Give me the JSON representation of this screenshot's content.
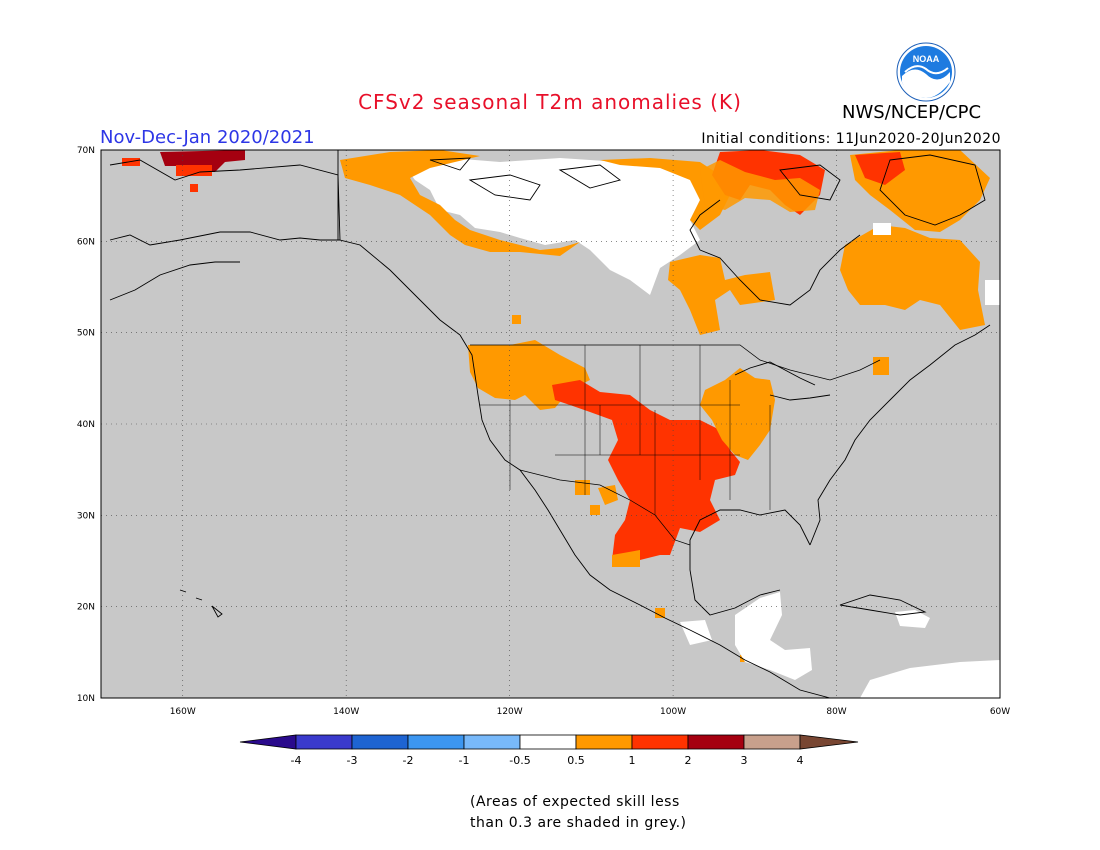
{
  "header": {
    "title": "CFSv2 seasonal T2m anomalies (K)",
    "period": "Nov-Dec-Jan 2020/2021",
    "initial_conditions": "Initial conditions: 11Jun2020-20Jun2020",
    "agency": "NWS/NCEP/CPC",
    "logo_text": "NOAA"
  },
  "map": {
    "projection": "lat-lon",
    "lon_range": [
      -170,
      -60
    ],
    "lat_range": [
      10,
      70
    ],
    "lat_ticks": [
      "10N",
      "20N",
      "30N",
      "40N",
      "50N",
      "60N",
      "70N"
    ],
    "lon_ticks": [
      "160W",
      "140W",
      "120W",
      "100W",
      "80W",
      "60W"
    ],
    "grid": "dotted",
    "land_color_no_skill": "#c8c8c8",
    "regions": [
      {
        "name": "northern-alaska-coast",
        "category": "2 to 3",
        "color": "#a50010"
      },
      {
        "name": "central-canada-arctic",
        "category": "-0.5 to 0.5",
        "color": "#ffffff"
      },
      {
        "name": "hudson-bay-and-quebec",
        "category": "0.5 to 1",
        "color": "#ff9900"
      },
      {
        "name": "baffin-region",
        "category": "1 to 2",
        "color": "#ff3300"
      },
      {
        "name": "pacific-northwest-and-rockies",
        "category": "0.5 to 1",
        "color": "#ff9900"
      },
      {
        "name": "central-and-southern-plains",
        "category": "1 to 2",
        "color": "#ff3300"
      },
      {
        "name": "upper-midwest",
        "category": "0.5 to 1",
        "color": "#ff9900"
      },
      {
        "name": "central-america",
        "category": "-0.5 to 0.5",
        "color": "#ffffff"
      }
    ]
  },
  "colorbar": {
    "labels": [
      "-4",
      "-3",
      "-2",
      "-1",
      "-0.5",
      "0.5",
      "1",
      "2",
      "3",
      "4"
    ],
    "colors": [
      "#2a0a8c",
      "#3a3acc",
      "#1e64d2",
      "#3c96f0",
      "#78b9fa",
      "#ffffff",
      "#ff9900",
      "#ff3300",
      "#a50010",
      "#c8a08c",
      "#784632"
    ]
  },
  "note": {
    "line1": "(Areas of expected skill less",
    "line2": "than 0.3 are shaded in grey.)"
  }
}
